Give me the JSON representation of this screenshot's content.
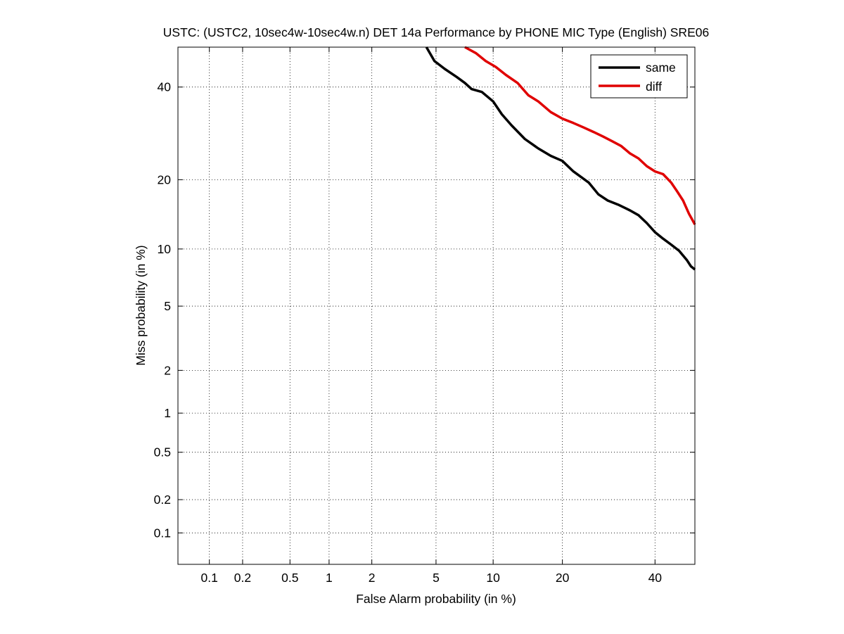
{
  "chart_data": {
    "type": "line",
    "title": "USTC: (USTC2, 10sec4w-10sec4w.n) DET 14a Performance by PHONE MIC Type (English) SRE06",
    "xlabel": "False Alarm probability (in %)",
    "ylabel": "Miss probability (in %)",
    "xscale": "probit",
    "yscale": "probit",
    "xlim": [
      0.05,
      50
    ],
    "ylim": [
      0.05,
      50
    ],
    "grid": true,
    "legend_position": "top-right",
    "x_ticks": [
      {
        "value": 0.1,
        "label": "0.1"
      },
      {
        "value": 0.2,
        "label": "0.2"
      },
      {
        "value": 0.5,
        "label": "0.5"
      },
      {
        "value": 1,
        "label": "1"
      },
      {
        "value": 2,
        "label": "2"
      },
      {
        "value": 5,
        "label": "5"
      },
      {
        "value": 10,
        "label": "10"
      },
      {
        "value": 20,
        "label": "20"
      },
      {
        "value": 40,
        "label": "40"
      }
    ],
    "y_ticks": [
      {
        "value": 0.1,
        "label": "0.1"
      },
      {
        "value": 0.2,
        "label": "0.2"
      },
      {
        "value": 0.5,
        "label": "0.5"
      },
      {
        "value": 1,
        "label": "1"
      },
      {
        "value": 2,
        "label": "2"
      },
      {
        "value": 5,
        "label": "5"
      },
      {
        "value": 10,
        "label": "10"
      },
      {
        "value": 20,
        "label": "20"
      },
      {
        "value": 40,
        "label": "40"
      }
    ],
    "series": [
      {
        "name": "same",
        "color": "#000000",
        "points": [
          [
            4.4,
            50
          ],
          [
            4.9,
            46.5
          ],
          [
            5.6,
            44.5
          ],
          [
            6.5,
            42.5
          ],
          [
            7.2,
            41
          ],
          [
            7.8,
            39.5
          ],
          [
            8.8,
            38.8
          ],
          [
            10,
            36.5
          ],
          [
            11,
            33.5
          ],
          [
            12.2,
            31
          ],
          [
            14,
            28
          ],
          [
            16,
            26
          ],
          [
            18,
            24.5
          ],
          [
            20,
            23.5
          ],
          [
            22,
            21.5
          ],
          [
            25,
            19.5
          ],
          [
            27,
            17.5
          ],
          [
            29,
            16.5
          ],
          [
            31.5,
            15.8
          ],
          [
            34,
            15
          ],
          [
            36,
            14.3
          ],
          [
            38,
            13.2
          ],
          [
            40,
            12
          ],
          [
            42,
            11.2
          ],
          [
            44,
            10.5
          ],
          [
            46,
            9.8
          ],
          [
            48,
            8.8
          ],
          [
            49,
            8.2
          ],
          [
            50,
            7.9
          ]
        ]
      },
      {
        "name": "diff",
        "color": "#e00000",
        "points": [
          [
            7.2,
            50
          ],
          [
            8.2,
            48.5
          ],
          [
            9.2,
            46.5
          ],
          [
            10.3,
            45
          ],
          [
            11.5,
            43
          ],
          [
            13,
            41
          ],
          [
            14.5,
            38
          ],
          [
            16,
            36.5
          ],
          [
            18,
            34
          ],
          [
            20,
            32.5
          ],
          [
            22,
            31.5
          ],
          [
            24,
            30.5
          ],
          [
            26,
            29.5
          ],
          [
            28,
            28.5
          ],
          [
            30,
            27.5
          ],
          [
            32,
            26.5
          ],
          [
            34,
            25
          ],
          [
            36,
            24
          ],
          [
            38,
            22.5
          ],
          [
            40,
            21.5
          ],
          [
            42,
            21
          ],
          [
            44,
            19.5
          ],
          [
            45.5,
            18
          ],
          [
            47,
            16.5
          ],
          [
            48.5,
            14.5
          ],
          [
            49.5,
            13.5
          ],
          [
            50,
            13
          ]
        ]
      }
    ]
  }
}
